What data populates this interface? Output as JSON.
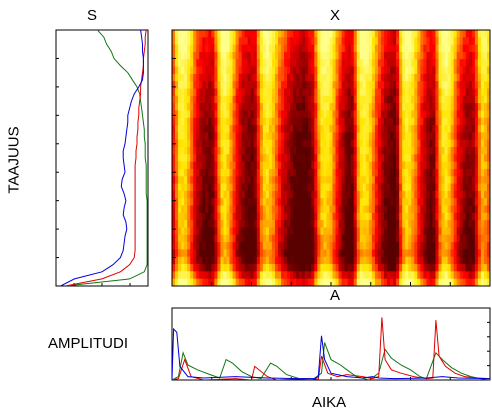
{
  "labels": {
    "s_title": "S",
    "x_title": "X",
    "a_title": "A",
    "s_ylabel": "TAAJUUS",
    "a_ylabel": "AMPLITUDI",
    "a_xlabel": "AIKA"
  },
  "colors": {
    "green": "#117711",
    "red": "#e00000",
    "blue": "#0000dd"
  },
  "chart_data": [
    {
      "type": "line",
      "panel": "S",
      "orientation": "vertical",
      "series": [
        {
          "color": "green",
          "values": [
            0.45,
            0.52,
            0.55,
            0.6,
            0.63,
            0.7,
            0.78,
            0.83,
            0.88,
            0.91,
            0.92,
            0.93,
            0.94,
            0.95,
            0.96,
            0.96,
            0.97,
            0.97,
            0.97,
            0.98,
            0.98,
            0.98,
            0.98,
            0.98,
            0.99,
            0.99,
            0.99,
            0.99,
            0.99,
            0.99,
            0.99,
            0.99,
            0.99,
            0.99,
            0.96,
            0.8,
            0.1
          ]
        },
        {
          "color": "red",
          "values": [
            0.98,
            0.97,
            0.97,
            0.96,
            0.95,
            0.95,
            0.94,
            0.93,
            0.92,
            0.92,
            0.91,
            0.9,
            0.9,
            0.89,
            0.89,
            0.88,
            0.88,
            0.87,
            0.87,
            0.86,
            0.86,
            0.86,
            0.86,
            0.86,
            0.86,
            0.86,
            0.86,
            0.86,
            0.86,
            0.86,
            0.86,
            0.86,
            0.85,
            0.8,
            0.7,
            0.5,
            0.1
          ]
        },
        {
          "color": "blue",
          "values": [
            0.92,
            0.93,
            0.94,
            0.94,
            0.95,
            0.95,
            0.95,
            0.94,
            0.9,
            0.85,
            0.82,
            0.8,
            0.78,
            0.78,
            0.77,
            0.76,
            0.75,
            0.73,
            0.73,
            0.74,
            0.75,
            0.72,
            0.71,
            0.74,
            0.76,
            0.74,
            0.73,
            0.76,
            0.77,
            0.75,
            0.74,
            0.73,
            0.7,
            0.62,
            0.5,
            0.2,
            0.05
          ]
        }
      ]
    },
    {
      "type": "heatmap",
      "panel": "X",
      "column_intensity": [
        0.55,
        0.75,
        0.95,
        0.98,
        0.95,
        0.85,
        0.7,
        0.55,
        0.42,
        0.35,
        0.3,
        0.28,
        0.25,
        0.3,
        0.5,
        0.75,
        0.95,
        0.98,
        0.92,
        0.8,
        0.65,
        0.5,
        0.4,
        0.32,
        0.28,
        0.25,
        0.24,
        0.3,
        0.55,
        0.8,
        0.92,
        0.95,
        0.9,
        0.82,
        0.7,
        0.58,
        0.48,
        0.4,
        0.34,
        0.28,
        0.24,
        0.2,
        0.18,
        0.18,
        0.2,
        0.25,
        0.32,
        0.55,
        0.8,
        0.95,
        0.98,
        0.95,
        0.88,
        0.75,
        0.6,
        0.45,
        0.35,
        0.28,
        0.24,
        0.26,
        0.5,
        0.82,
        0.96,
        0.98,
        0.95,
        0.88,
        0.75,
        0.6,
        0.48,
        0.38,
        0.3,
        0.25,
        0.22,
        0.2,
        0.35,
        0.7,
        0.92,
        0.98,
        0.95,
        0.88,
        0.75,
        0.62,
        0.5,
        0.4,
        0.32,
        0.26,
        0.3,
        0.55,
        0.82,
        0.95,
        0.98,
        0.92,
        0.8,
        0.65,
        0.52,
        0.42,
        0.35,
        0.3,
        0.28,
        0.32,
        0.5,
        0.75,
        0.9,
        0.85,
        0.75
      ],
      "row_intensity": [
        0.08,
        0.05,
        0.03,
        0.0,
        -0.02,
        -0.04,
        -0.06,
        -0.08,
        -0.1,
        -0.12,
        -0.14,
        -0.15,
        -0.16,
        -0.17,
        -0.18,
        -0.18,
        -0.19,
        -0.2,
        -0.2,
        -0.21,
        -0.22,
        -0.22,
        -0.23,
        -0.24,
        -0.25,
        -0.25,
        -0.26,
        -0.28,
        -0.3,
        -0.32,
        -0.34,
        -0.3,
        -0.2,
        -0.05,
        0.08
      ]
    },
    {
      "type": "line",
      "panel": "A",
      "series": [
        {
          "color": "green",
          "points": [
            [
              0.0,
              0.0
            ],
            [
              0.02,
              0.05
            ],
            [
              0.035,
              0.4
            ],
            [
              0.05,
              0.22
            ],
            [
              0.08,
              0.15
            ],
            [
              0.12,
              0.08
            ],
            [
              0.15,
              0.03
            ],
            [
              0.17,
              0.3
            ],
            [
              0.19,
              0.25
            ],
            [
              0.22,
              0.12
            ],
            [
              0.25,
              0.05
            ],
            [
              0.28,
              0.02
            ],
            [
              0.31,
              0.25
            ],
            [
              0.33,
              0.2
            ],
            [
              0.36,
              0.08
            ],
            [
              0.4,
              0.02
            ],
            [
              0.44,
              0.0
            ],
            [
              0.47,
              0.1
            ],
            [
              0.48,
              0.55
            ],
            [
              0.5,
              0.3
            ],
            [
              0.53,
              0.22
            ],
            [
              0.55,
              0.15
            ],
            [
              0.58,
              0.05
            ],
            [
              0.62,
              0.0
            ],
            [
              0.65,
              0.1
            ],
            [
              0.67,
              0.45
            ],
            [
              0.69,
              0.32
            ],
            [
              0.72,
              0.22
            ],
            [
              0.75,
              0.15
            ],
            [
              0.78,
              0.05
            ],
            [
              0.8,
              0.02
            ],
            [
              0.83,
              0.4
            ],
            [
              0.85,
              0.3
            ],
            [
              0.88,
              0.18
            ],
            [
              0.91,
              0.1
            ],
            [
              0.94,
              0.05
            ],
            [
              0.97,
              0.02
            ],
            [
              1.0,
              0.0
            ]
          ]
        },
        {
          "color": "red",
          "points": [
            [
              0.0,
              0.0
            ],
            [
              0.02,
              0.02
            ],
            [
              0.04,
              0.3
            ],
            [
              0.06,
              0.05
            ],
            [
              0.1,
              0.0
            ],
            [
              0.2,
              0.02
            ],
            [
              0.25,
              0.0
            ],
            [
              0.26,
              0.2
            ],
            [
              0.3,
              0.05
            ],
            [
              0.33,
              0.0
            ],
            [
              0.42,
              0.02
            ],
            [
              0.46,
              0.01
            ],
            [
              0.47,
              0.35
            ],
            [
              0.49,
              0.1
            ],
            [
              0.52,
              0.05
            ],
            [
              0.55,
              0.08
            ],
            [
              0.6,
              0.05
            ],
            [
              0.63,
              0.02
            ],
            [
              0.65,
              0.05
            ],
            [
              0.66,
              0.92
            ],
            [
              0.67,
              0.3
            ],
            [
              0.69,
              0.15
            ],
            [
              0.72,
              0.1
            ],
            [
              0.76,
              0.05
            ],
            [
              0.8,
              0.02
            ],
            [
              0.82,
              0.03
            ],
            [
              0.83,
              0.88
            ],
            [
              0.84,
              0.35
            ],
            [
              0.86,
              0.2
            ],
            [
              0.89,
              0.1
            ],
            [
              0.92,
              0.05
            ],
            [
              0.96,
              0.03
            ],
            [
              1.0,
              0.02
            ]
          ]
        },
        {
          "color": "blue",
          "points": [
            [
              0.0,
              0.0
            ],
            [
              0.005,
              0.75
            ],
            [
              0.015,
              0.7
            ],
            [
              0.025,
              0.2
            ],
            [
              0.05,
              0.05
            ],
            [
              0.1,
              0.03
            ],
            [
              0.2,
              0.05
            ],
            [
              0.3,
              0.03
            ],
            [
              0.4,
              0.02
            ],
            [
              0.45,
              0.02
            ],
            [
              0.46,
              0.05
            ],
            [
              0.47,
              0.65
            ],
            [
              0.48,
              0.3
            ],
            [
              0.5,
              0.1
            ],
            [
              0.55,
              0.05
            ],
            [
              0.6,
              0.03
            ],
            [
              0.63,
              0.05
            ],
            [
              0.65,
              0.03
            ],
            [
              0.7,
              0.02
            ],
            [
              0.8,
              0.03
            ],
            [
              0.85,
              0.05
            ],
            [
              0.9,
              0.03
            ],
            [
              1.0,
              0.02
            ]
          ]
        }
      ]
    }
  ]
}
